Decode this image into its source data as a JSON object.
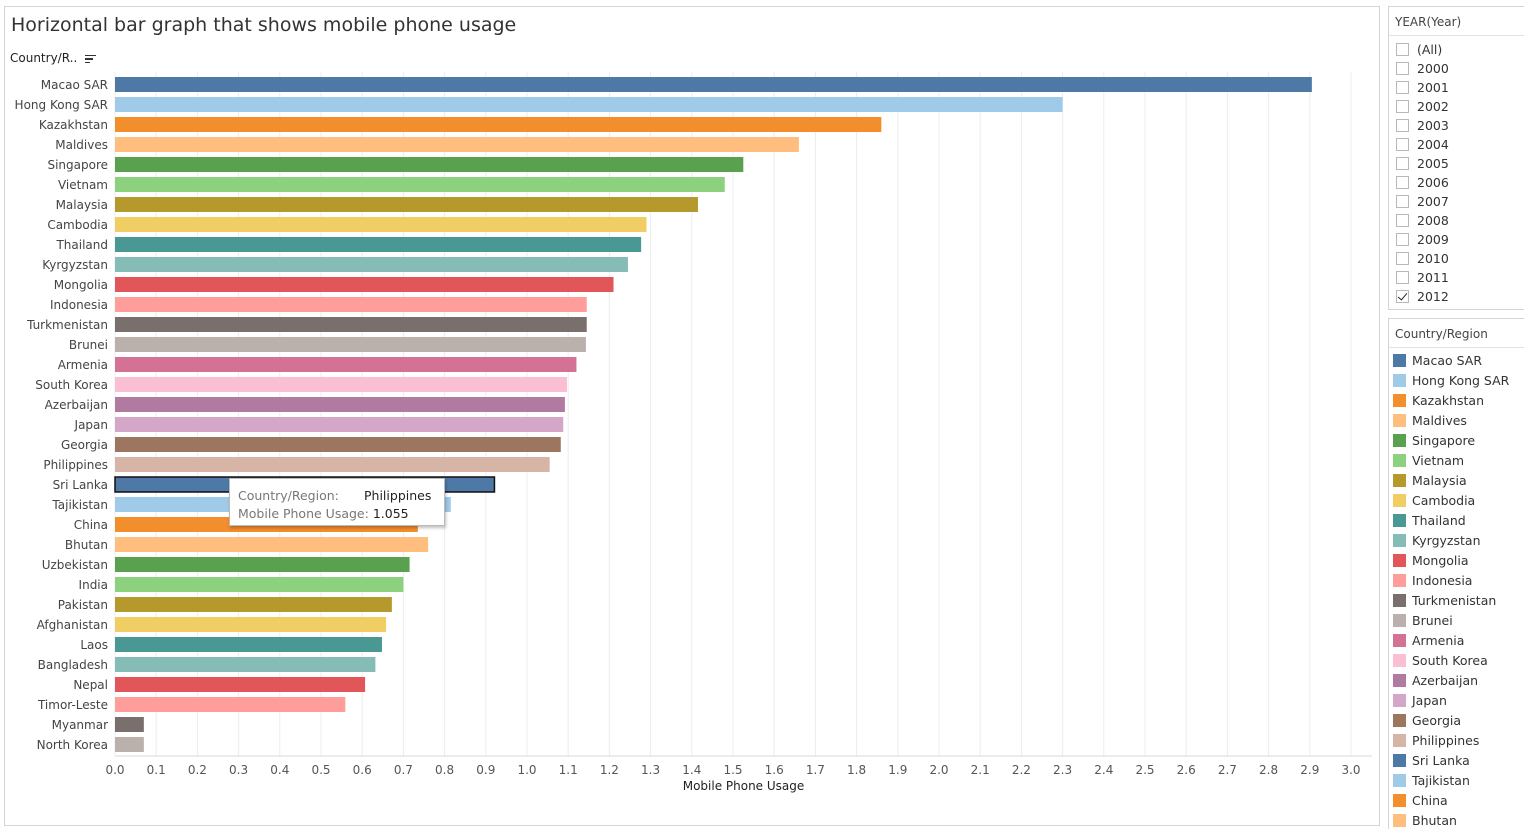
{
  "chart_data": {
    "type": "bar",
    "orientation": "horizontal",
    "title": "Horizontal bar graph that shows mobile phone usage",
    "ylabel": "Country/R..",
    "xlabel": "Mobile Phone Usage",
    "xlim": [
      0,
      3.05
    ],
    "x_ticks": [
      "0.0",
      "0.1",
      "0.2",
      "0.3",
      "0.4",
      "0.5",
      "0.6",
      "0.7",
      "0.8",
      "0.9",
      "1.0",
      "1.1",
      "1.2",
      "1.3",
      "1.4",
      "1.5",
      "1.6",
      "1.7",
      "1.8",
      "1.9",
      "2.0",
      "2.1",
      "2.2",
      "2.3",
      "2.4",
      "2.5",
      "2.6",
      "2.7",
      "2.8",
      "2.9",
      "3.0"
    ],
    "grid": "vertical",
    "categories": [
      "Macao SAR",
      "Hong Kong SAR",
      "Kazakhstan",
      "Maldives",
      "Singapore",
      "Vietnam",
      "Malaysia",
      "Cambodia",
      "Thailand",
      "Kyrgyzstan",
      "Mongolia",
      "Indonesia",
      "Turkmenistan",
      "Brunei",
      "Armenia",
      "South Korea",
      "Azerbaijan",
      "Japan",
      "Georgia",
      "Philippines",
      "Sri Lanka",
      "Tajikistan",
      "China",
      "Bhutan",
      "Uzbekistan",
      "India",
      "Pakistan",
      "Afghanistan",
      "Laos",
      "Bangladesh",
      "Nepal",
      "Timor-Leste",
      "Myanmar",
      "North Korea"
    ],
    "values": [
      2.905,
      2.3,
      1.86,
      1.66,
      1.525,
      1.48,
      1.415,
      1.29,
      1.277,
      1.245,
      1.21,
      1.145,
      1.145,
      1.143,
      1.12,
      1.097,
      1.092,
      1.088,
      1.082,
      1.055,
      0.921,
      0.815,
      0.735,
      0.76,
      0.715,
      0.7,
      0.672,
      0.658,
      0.648,
      0.632,
      0.607,
      0.559,
      0.07,
      0.07
    ],
    "colors": [
      "#4e79a7",
      "#a0cbe8",
      "#f28e2b",
      "#ffbe7d",
      "#59a14f",
      "#8cd17d",
      "#b6992d",
      "#f1ce63",
      "#499894",
      "#86bcb6",
      "#e15759",
      "#ff9d9a",
      "#79706e",
      "#bab0ac",
      "#d37295",
      "#fabfd2",
      "#b07aa1",
      "#d4a6c8",
      "#9d7660",
      "#d7b5a6",
      "#4e79a7",
      "#a0cbe8",
      "#f28e2b",
      "#ffbe7d",
      "#59a14f",
      "#8cd17d",
      "#b6992d",
      "#f1ce63",
      "#499894",
      "#86bcb6",
      "#e15759",
      "#ff9d9a",
      "#79706e",
      "#bab0ac"
    ],
    "highlighted": "Sri Lanka",
    "tooltip": {
      "country_key": "Country/Region:",
      "country_value": "Philippines",
      "usage_key": "Mobile Phone Usage:",
      "usage_value": "1.055"
    }
  },
  "filter": {
    "title": "YEAR(Year)",
    "items": [
      {
        "label": "(All)",
        "checked": false
      },
      {
        "label": "2000",
        "checked": false
      },
      {
        "label": "2001",
        "checked": false
      },
      {
        "label": "2002",
        "checked": false
      },
      {
        "label": "2003",
        "checked": false
      },
      {
        "label": "2004",
        "checked": false
      },
      {
        "label": "2005",
        "checked": false
      },
      {
        "label": "2006",
        "checked": false
      },
      {
        "label": "2007",
        "checked": false
      },
      {
        "label": "2008",
        "checked": false
      },
      {
        "label": "2009",
        "checked": false
      },
      {
        "label": "2010",
        "checked": false
      },
      {
        "label": "2011",
        "checked": false
      },
      {
        "label": "2012",
        "checked": true
      }
    ]
  },
  "legend": {
    "title": "Country/Region",
    "items": [
      {
        "label": "Macao SAR",
        "color": "#4e79a7"
      },
      {
        "label": "Hong Kong SAR",
        "color": "#a0cbe8"
      },
      {
        "label": "Kazakhstan",
        "color": "#f28e2b"
      },
      {
        "label": "Maldives",
        "color": "#ffbe7d"
      },
      {
        "label": "Singapore",
        "color": "#59a14f"
      },
      {
        "label": "Vietnam",
        "color": "#8cd17d"
      },
      {
        "label": "Malaysia",
        "color": "#b6992d"
      },
      {
        "label": "Cambodia",
        "color": "#f1ce63"
      },
      {
        "label": "Thailand",
        "color": "#499894"
      },
      {
        "label": "Kyrgyzstan",
        "color": "#86bcb6"
      },
      {
        "label": "Mongolia",
        "color": "#e15759"
      },
      {
        "label": "Indonesia",
        "color": "#ff9d9a"
      },
      {
        "label": "Turkmenistan",
        "color": "#79706e"
      },
      {
        "label": "Brunei",
        "color": "#bab0ac"
      },
      {
        "label": "Armenia",
        "color": "#d37295"
      },
      {
        "label": "South Korea",
        "color": "#fabfd2"
      },
      {
        "label": "Azerbaijan",
        "color": "#b07aa1"
      },
      {
        "label": "Japan",
        "color": "#d4a6c8"
      },
      {
        "label": "Georgia",
        "color": "#9d7660"
      },
      {
        "label": "Philippines",
        "color": "#d7b5a6"
      },
      {
        "label": "Sri Lanka",
        "color": "#4e79a7"
      },
      {
        "label": "Tajikistan",
        "color": "#a0cbe8"
      },
      {
        "label": "China",
        "color": "#f28e2b"
      },
      {
        "label": "Bhutan",
        "color": "#ffbe7d"
      }
    ]
  }
}
